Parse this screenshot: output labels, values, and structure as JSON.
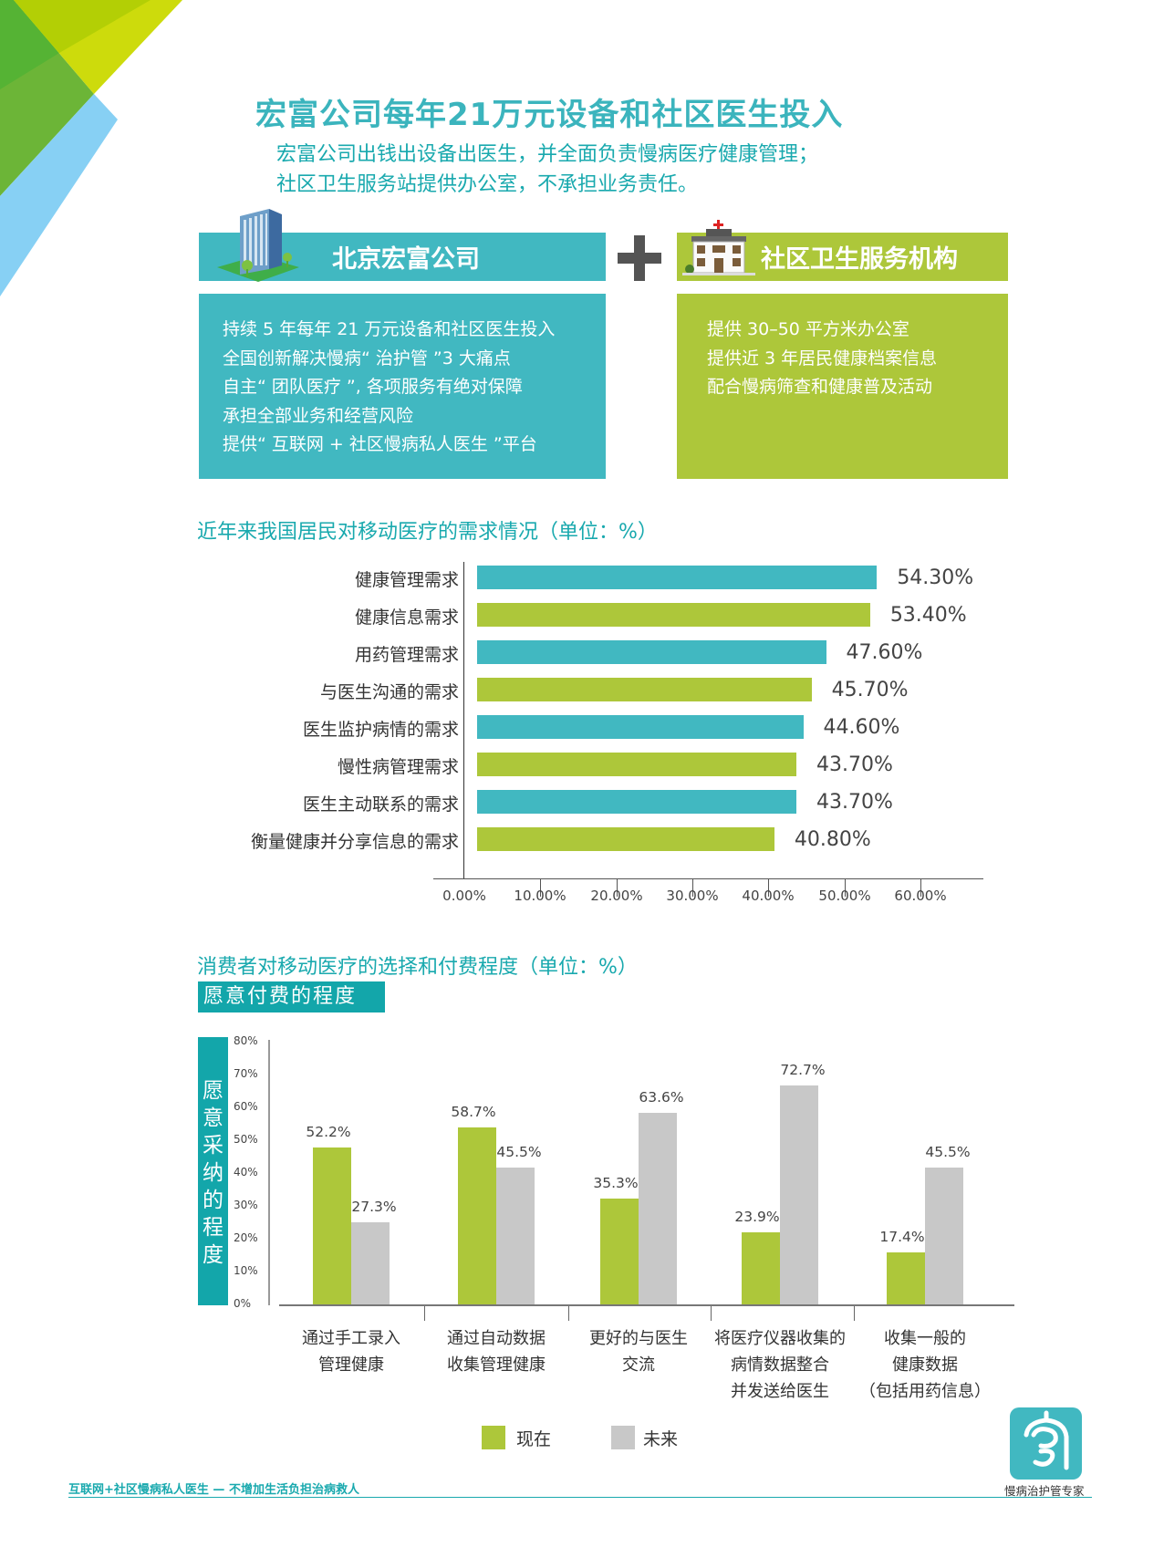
{
  "header": {
    "title": "宏富公司每年21万元设备和社区医生投入",
    "subtitle_lines": [
      "宏富公司出钱出设备出医生，并全面负责慢病医疗健康管理；",
      "社区卫生服务站提供办公室，不承担业务责任。"
    ]
  },
  "panels": {
    "left": {
      "title": "北京宏富公司",
      "icon": "office-building-icon",
      "items": [
        "持续 5 年每年 21 万元设备和社区医生投入",
        "全国创新解决慢病“ 治护管 ”3 大痛点",
        "自主“ 团队医疗 ”, 各项服务有绝对保障",
        "承担全部业务和经营风险",
        "提供“ 互联网 + 社区慢病私人医生 ”平台"
      ]
    },
    "connector": "plus-icon",
    "right": {
      "title": "社区卫生服务机构",
      "icon": "clinic-building-icon",
      "items": [
        "提供 30–50 平方米办公室",
        "提供近 3 年居民健康档案信息",
        "配合慢病筛查和健康普及活动"
      ]
    }
  },
  "colors": {
    "teal": "#41b8c1",
    "green": "#adc73a",
    "gray": "#c8c8c8",
    "title_teal": "#3bb4bd",
    "label_teal": "#13a6aa"
  },
  "chart_data": [
    {
      "type": "bar",
      "orientation": "horizontal",
      "title": "近年来我国居民对移动医疗的需求情况（单位：%）",
      "categories": [
        "健康管理需求",
        "健康信息需求",
        "用药管理需求",
        "与医生沟通的需求",
        "医生监护病情的需求",
        "慢性病管理需求",
        "医生主动联系的需求",
        "衡量健康并分享信息的需求"
      ],
      "values": [
        54.3,
        53.4,
        47.6,
        45.7,
        44.6,
        43.7,
        43.7,
        40.8
      ],
      "value_labels": [
        "54.30%",
        "53.40%",
        "47.60%",
        "45.70%",
        "44.60%",
        "43.70%",
        "43.70%",
        "40.80%"
      ],
      "bar_colors": [
        "#41b8c1",
        "#adc73a",
        "#41b8c1",
        "#adc73a",
        "#41b8c1",
        "#adc73a",
        "#41b8c1",
        "#adc73a"
      ],
      "xlim": [
        0,
        60
      ],
      "xticks": [
        "0.00%",
        "10.00%",
        "20.00%",
        "30.00%",
        "40.00%",
        "50.00%",
        "60.00%"
      ],
      "xlabel": "",
      "ylabel": "",
      "grid": false
    },
    {
      "type": "bar",
      "orientation": "vertical",
      "title": "消费者对移动医疗的选择和付费程度（单位：%）",
      "subtitle": "愿意付费的程度",
      "ylabel": "愿意采纳的程度",
      "categories": [
        [
          "通过手工录入",
          "管理健康"
        ],
        [
          "通过自动数据",
          "收集管理健康"
        ],
        [
          "更好的与医生",
          "交流"
        ],
        [
          "将医疗仪器收集的",
          "病情数据整合",
          "并发送给医生"
        ],
        [
          "收集一般的",
          "健康数据",
          "（包括用药信息）"
        ]
      ],
      "series": [
        {
          "name": "现在",
          "color": "#adc73a",
          "values": [
            52.2,
            58.7,
            35.3,
            23.9,
            17.4
          ],
          "labels": [
            "52.2%",
            "58.7%",
            "35.3%",
            "23.9%",
            "17.4%"
          ]
        },
        {
          "name": "未来",
          "color": "#c8c8c8",
          "values": [
            27.3,
            45.5,
            63.6,
            72.7,
            45.5
          ],
          "labels": [
            "27.3%",
            "45.5%",
            "63.6%",
            "72.7%",
            "45.5%"
          ]
        }
      ],
      "ylim": [
        0,
        80
      ],
      "yticks": [
        "80%",
        "70%",
        "60%",
        "50%",
        "40%",
        "30%",
        "20%",
        "10%",
        "0%"
      ],
      "legend": {
        "position": "bottom",
        "items": [
          "现在",
          "未来"
        ]
      },
      "grid": false
    }
  ],
  "footer": {
    "tagline": "互联网+社区慢病私人医生 — 不增加生活负担治病救人",
    "logo_text": "慢病治护管专家",
    "logo_icon": "family-seal-logo-icon"
  }
}
